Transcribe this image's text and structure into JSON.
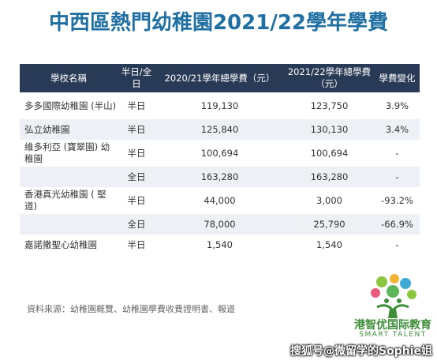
{
  "title": "中西區熱門幼稚園2021/22學年學費",
  "table": {
    "headers": {
      "school": "學校名稱",
      "mode": "半日/全日",
      "fee_2020": "2020/21學年總學費（元）",
      "fee_2021": "2021/22學年總學費（元）",
      "change": "學費變化"
    },
    "rows": [
      {
        "school": "多多國際幼稚園 (半山)",
        "mode": "半日",
        "fee_2020": "119,130",
        "fee_2021": "123,750",
        "change": "3.9%"
      },
      {
        "school": "弘立幼稚園",
        "mode": "半日",
        "fee_2020": "125,840",
        "fee_2021": "130,130",
        "change": "3.4%"
      },
      {
        "school": "維多利亞 (寶翠園) 幼稚園",
        "mode": "半日",
        "fee_2020": "100,694",
        "fee_2021": "100,694",
        "change": "-"
      },
      {
        "school": "",
        "mode": "全日",
        "fee_2020": "163,280",
        "fee_2021": "163,280",
        "change": "-"
      },
      {
        "school": "香港真光幼稚園 ( 堅道)",
        "mode": "半日",
        "fee_2020": "44,000",
        "fee_2021": "3,000",
        "change": "-93.2%"
      },
      {
        "school": "",
        "mode": "全日",
        "fee_2020": "78,000",
        "fee_2021": "25,790",
        "change": "-66.9%"
      },
      {
        "school": "嘉諾撒聖心幼稚園",
        "mode": "半日",
        "fee_2020": "1,540",
        "fee_2021": "1,540",
        "change": "-"
      }
    ]
  },
  "source": "資料來源：幼稚園概覽、幼稚園學費收費證明書、報道",
  "logo": {
    "name": "港智优国际教育",
    "english": "SMART TALENT",
    "icon": "tree-icon",
    "color": "#3f8f3a"
  },
  "watermark": "搜狐号@微留学的Sophie姐",
  "colors": {
    "title": "#1f6fa3",
    "header_bg": "#283a55",
    "row_alt_bg": "#edf0f4"
  }
}
